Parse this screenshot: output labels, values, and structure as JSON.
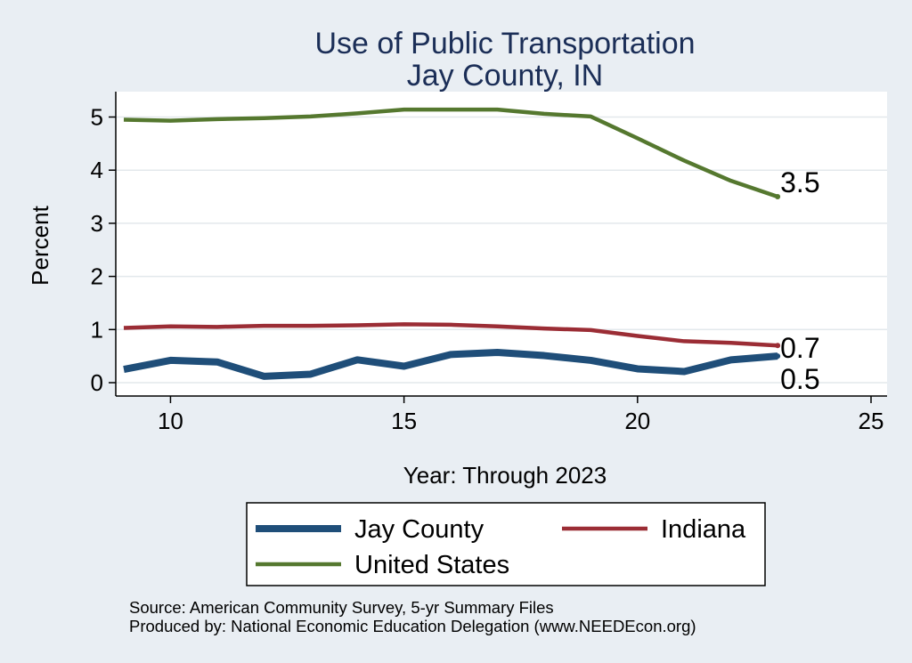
{
  "chart_data": {
    "type": "line",
    "title": "Use of Public Transportation",
    "subtitle": "Jay County, IN",
    "xlabel": "Year: Through 2023",
    "ylabel": "Percent",
    "xlim": [
      9,
      25
    ],
    "ylim": [
      0,
      5
    ],
    "x_ticks": [
      10,
      15,
      20,
      25
    ],
    "y_ticks": [
      0,
      1,
      2,
      3,
      4,
      5
    ],
    "grid": true,
    "legend_position": "bottom",
    "x": [
      9,
      10,
      11,
      12,
      13,
      14,
      15,
      16,
      17,
      18,
      19,
      20,
      21,
      22,
      23
    ],
    "series": [
      {
        "name": "Jay County",
        "color": "#1f4e79",
        "values": [
          0.25,
          0.42,
          0.39,
          0.12,
          0.16,
          0.43,
          0.31,
          0.53,
          0.57,
          0.51,
          0.42,
          0.26,
          0.21,
          0.43,
          0.5
        ],
        "end_label": "0.5"
      },
      {
        "name": "Indiana",
        "color": "#9b2d35",
        "values": [
          1.03,
          1.06,
          1.05,
          1.07,
          1.07,
          1.08,
          1.1,
          1.09,
          1.06,
          1.02,
          0.99,
          0.88,
          0.78,
          0.75,
          0.7
        ],
        "end_label": "0.7"
      },
      {
        "name": "United States",
        "color": "#55782f",
        "values": [
          4.95,
          4.93,
          4.96,
          4.98,
          5.01,
          5.07,
          5.14,
          5.14,
          5.14,
          5.06,
          5.01,
          4.6,
          4.18,
          3.8,
          3.5
        ],
        "end_label": "3.5"
      }
    ],
    "source_note": "Source: American Community Survey, 5-yr Summary Files",
    "producer_note": "Produced by: National Economic Education Delegation (www.NEEDEcon.org)"
  }
}
